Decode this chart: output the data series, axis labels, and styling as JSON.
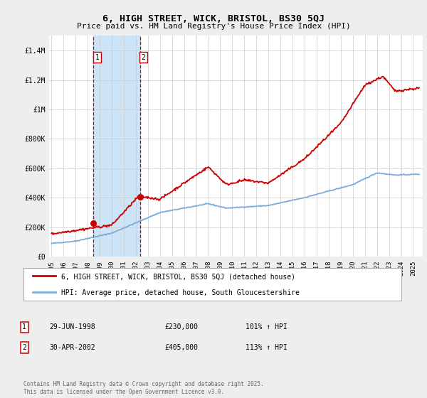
{
  "title": "6, HIGH STREET, WICK, BRISTOL, BS30 5QJ",
  "subtitle": "Price paid vs. HM Land Registry's House Price Index (HPI)",
  "title_fontsize": 9.5,
  "subtitle_fontsize": 8.0,
  "ylim": [
    0,
    1500000
  ],
  "yticks": [
    0,
    200000,
    400000,
    600000,
    800000,
    1000000,
    1200000,
    1400000
  ],
  "ytick_labels": [
    "£0",
    "£200K",
    "£400K",
    "£600K",
    "£800K",
    "£1M",
    "£1.2M",
    "£1.4M"
  ],
  "bg_color": "#eeeeee",
  "plot_bg_color": "#ffffff",
  "red_line_color": "#cc0000",
  "blue_line_color": "#7aaddb",
  "shade_color": "#cce4f5",
  "vline_color": "#cc0000",
  "transaction1_x": 1998.49,
  "transaction1_y": 230000,
  "transaction2_x": 2002.33,
  "transaction2_y": 405000,
  "legend_red_label": "6, HIGH STREET, WICK, BRISTOL, BS30 5QJ (detached house)",
  "legend_blue_label": "HPI: Average price, detached house, South Gloucestershire",
  "table_rows": [
    {
      "num": "1",
      "date": "29-JUN-1998",
      "price": "£230,000",
      "hpi": "101% ↑ HPI"
    },
    {
      "num": "2",
      "date": "30-APR-2002",
      "price": "£405,000",
      "hpi": "113% ↑ HPI"
    }
  ],
  "footer": "Contains HM Land Registry data © Crown copyright and database right 2025.\nThis data is licensed under the Open Government Licence v3.0.",
  "xmin": 1994.8,
  "xmax": 2025.8
}
